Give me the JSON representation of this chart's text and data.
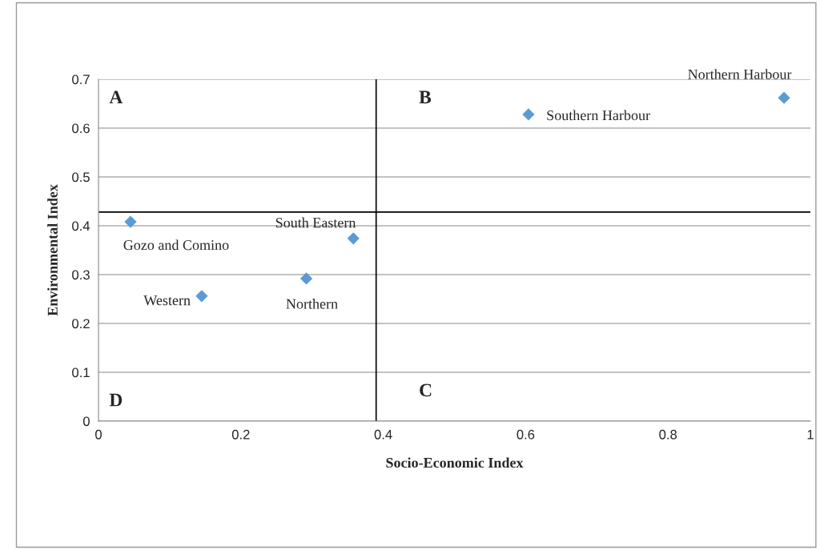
{
  "chart_data": {
    "type": "scatter",
    "xlabel": "Socio-Economic Index",
    "ylabel": "Environmental Index",
    "xlim": [
      0,
      1
    ],
    "ylim": [
      0,
      0.7
    ],
    "xticks": [
      0,
      0.2,
      0.4,
      0.6,
      0.8,
      1
    ],
    "yticks": [
      0,
      0.1,
      0.2,
      0.3,
      0.4,
      0.5,
      0.6,
      0.7
    ],
    "grid": "y",
    "marker": "diamond",
    "legend": false,
    "series": [
      {
        "name": "Gozo and Comino",
        "color": "#5b9bd5",
        "x": [
          0.045
        ],
        "values": [
          0.408
        ]
      },
      {
        "name": "Western",
        "color": "#5b9bd5",
        "x": [
          0.145
        ],
        "values": [
          0.256
        ]
      },
      {
        "name": "Northern",
        "color": "#5b9bd5",
        "x": [
          0.292
        ],
        "values": [
          0.292
        ]
      },
      {
        "name": "South Eastern",
        "color": "#5b9bd5",
        "x": [
          0.358
        ],
        "values": [
          0.374
        ]
      },
      {
        "name": "Southern Harbour",
        "color": "#5b9bd5",
        "x": [
          0.604
        ],
        "values": [
          0.628
        ]
      },
      {
        "name": "Northern Harbour",
        "color": "#5b9bd5",
        "x": [
          0.963
        ],
        "values": [
          0.662
        ]
      }
    ],
    "ref_lines": [
      {
        "axis": "x",
        "value": 0.39,
        "color": "#000000"
      },
      {
        "axis": "y",
        "value": 0.428,
        "color": "#000000"
      }
    ],
    "annotations": [
      "A",
      "B",
      "C",
      "D"
    ]
  }
}
